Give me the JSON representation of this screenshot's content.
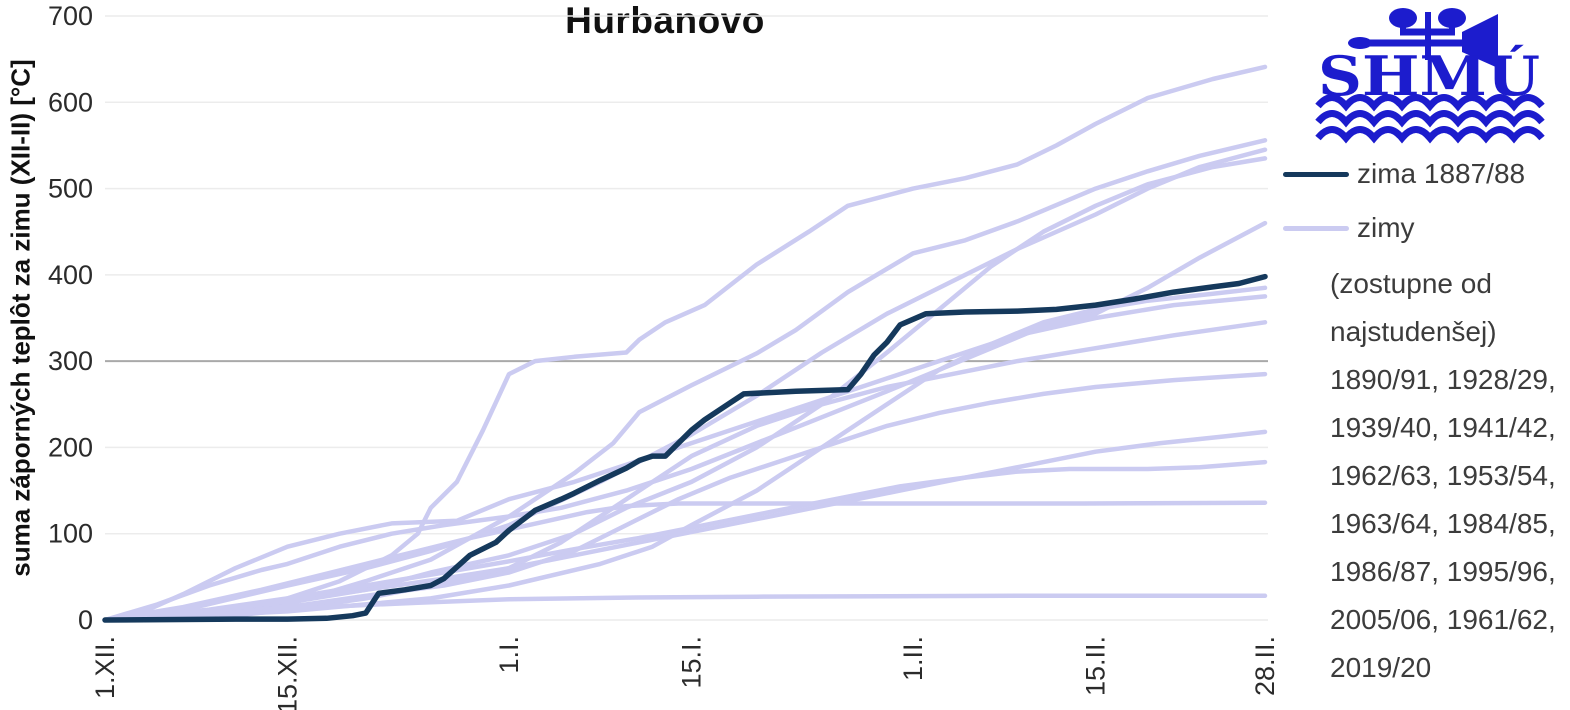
{
  "title": "Hurbanovo",
  "y_axis": {
    "label": "suma záporných teplôt za zimu (XII-II) [°C]"
  },
  "legend": {
    "item_highlight": "zima 1887/88",
    "item_other": "zimy",
    "note_lines": [
      "(zostupne od",
      "najstudenšej)",
      "1890/91, 1928/29,",
      "1939/40, 1941/42,",
      "1962/63, 1953/54,",
      "1963/64, 1984/85,",
      "1986/87, 1995/96,",
      "2005/06, 1961/62,",
      "2019/20"
    ]
  },
  "logo": {
    "text": "SHMÚ"
  },
  "colors": {
    "highlight": "#15395c",
    "other": "#cbcbf1",
    "grid": "#ececec",
    "grid_emph": "#a9a9a9",
    "logo": "#1c1ccd"
  },
  "chart_data": {
    "type": "line",
    "title": "Hurbanovo",
    "ylabel": "suma záporných teplôt za zimu (XII-II) [°C]",
    "ylim": [
      0,
      700
    ],
    "x_unit": "days since 1.XII (0) .. 28.II (89)",
    "grid": "horizontal",
    "emphasized_gridline": 300,
    "legend_position": "right",
    "y_ticks": [
      0,
      100,
      200,
      300,
      400,
      500,
      600,
      700
    ],
    "x_ticks": [
      {
        "label": "1.XII.",
        "day": 0
      },
      {
        "label": "15.XII.",
        "day": 14
      },
      {
        "label": "1.I.",
        "day": 31
      },
      {
        "label": "15.I.",
        "day": 45
      },
      {
        "label": "1.II.",
        "day": 62
      },
      {
        "label": "15.II.",
        "day": 76
      },
      {
        "label": "28.II.",
        "day": 89
      }
    ],
    "series": [
      {
        "name": "zima 1887/88",
        "role": "highlight",
        "points": [
          [
            0,
            0
          ],
          [
            10,
            1
          ],
          [
            14,
            1
          ],
          [
            17,
            2
          ],
          [
            19,
            5
          ],
          [
            20,
            8
          ],
          [
            21,
            31
          ],
          [
            23,
            35
          ],
          [
            25,
            40
          ],
          [
            26,
            48
          ],
          [
            28,
            75
          ],
          [
            30,
            90
          ],
          [
            31,
            104
          ],
          [
            33,
            127
          ],
          [
            35,
            140
          ],
          [
            36,
            147
          ],
          [
            38,
            162
          ],
          [
            40,
            176
          ],
          [
            41,
            185
          ],
          [
            42,
            190
          ],
          [
            43,
            190
          ],
          [
            45,
            220
          ],
          [
            46,
            232
          ],
          [
            48,
            252
          ],
          [
            49,
            262
          ],
          [
            53,
            265
          ],
          [
            57,
            267
          ],
          [
            58,
            285
          ],
          [
            59,
            307
          ],
          [
            60,
            322
          ],
          [
            61,
            342
          ],
          [
            63,
            355
          ],
          [
            66,
            357
          ],
          [
            70,
            358
          ],
          [
            73,
            360
          ],
          [
            76,
            365
          ],
          [
            79,
            372
          ],
          [
            82,
            380
          ],
          [
            85,
            386
          ],
          [
            87,
            390
          ],
          [
            89,
            398
          ]
        ]
      },
      {
        "name": "1890/91",
        "role": "other",
        "points": [
          [
            0,
            0
          ],
          [
            5,
            2
          ],
          [
            10,
            8
          ],
          [
            14,
            25
          ],
          [
            18,
            45
          ],
          [
            22,
            75
          ],
          [
            24,
            100
          ],
          [
            25,
            130
          ],
          [
            27,
            160
          ],
          [
            29,
            220
          ],
          [
            31,
            285
          ],
          [
            33,
            300
          ],
          [
            36,
            305
          ],
          [
            40,
            310
          ],
          [
            41,
            325
          ],
          [
            43,
            345
          ],
          [
            46,
            365
          ],
          [
            50,
            412
          ],
          [
            54,
            450
          ],
          [
            57,
            480
          ],
          [
            62,
            500
          ],
          [
            66,
            512
          ],
          [
            70,
            528
          ],
          [
            73,
            550
          ],
          [
            76,
            575
          ],
          [
            80,
            605
          ],
          [
            85,
            627
          ],
          [
            89,
            641
          ]
        ]
      },
      {
        "name": "1928/29",
        "role": "other",
        "points": [
          [
            0,
            0
          ],
          [
            8,
            8
          ],
          [
            14,
            18
          ],
          [
            20,
            45
          ],
          [
            25,
            70
          ],
          [
            28,
            95
          ],
          [
            31,
            120
          ],
          [
            36,
            170
          ],
          [
            39,
            205
          ],
          [
            41,
            241
          ],
          [
            45,
            272
          ],
          [
            50,
            309
          ],
          [
            53,
            336
          ],
          [
            57,
            380
          ],
          [
            62,
            425
          ],
          [
            66,
            440
          ],
          [
            70,
            462
          ],
          [
            76,
            500
          ],
          [
            80,
            520
          ],
          [
            84,
            538
          ],
          [
            89,
            556
          ]
        ]
      },
      {
        "name": "1939/40",
        "role": "other",
        "points": [
          [
            0,
            0
          ],
          [
            7,
            15
          ],
          [
            14,
            40
          ],
          [
            20,
            60
          ],
          [
            25,
            80
          ],
          [
            31,
            110
          ],
          [
            38,
            160
          ],
          [
            45,
            215
          ],
          [
            50,
            260
          ],
          [
            55,
            310
          ],
          [
            60,
            355
          ],
          [
            66,
            400
          ],
          [
            70,
            430
          ],
          [
            76,
            470
          ],
          [
            80,
            500
          ],
          [
            84,
            525
          ],
          [
            89,
            545
          ]
        ]
      },
      {
        "name": "1941/42",
        "role": "other",
        "points": [
          [
            0,
            0
          ],
          [
            10,
            10
          ],
          [
            14,
            20
          ],
          [
            20,
            35
          ],
          [
            25,
            55
          ],
          [
            31,
            75
          ],
          [
            36,
            100
          ],
          [
            40,
            130
          ],
          [
            45,
            160
          ],
          [
            50,
            200
          ],
          [
            55,
            250
          ],
          [
            60,
            310
          ],
          [
            64,
            360
          ],
          [
            68,
            410
          ],
          [
            72,
            450
          ],
          [
            76,
            480
          ],
          [
            80,
            505
          ],
          [
            85,
            525
          ],
          [
            89,
            535
          ]
        ]
      },
      {
        "name": "1962/63",
        "role": "other",
        "points": [
          [
            0,
            0
          ],
          [
            4,
            18
          ],
          [
            8,
            40
          ],
          [
            12,
            58
          ],
          [
            14,
            65
          ],
          [
            18,
            85
          ],
          [
            22,
            100
          ],
          [
            26,
            110
          ],
          [
            31,
            120
          ],
          [
            35,
            130
          ],
          [
            40,
            150
          ],
          [
            45,
            175
          ],
          [
            50,
            205
          ],
          [
            55,
            235
          ],
          [
            60,
            265
          ],
          [
            64,
            290
          ],
          [
            68,
            315
          ],
          [
            72,
            340
          ],
          [
            76,
            355
          ],
          [
            80,
            385
          ],
          [
            84,
            420
          ],
          [
            89,
            460
          ]
        ]
      },
      {
        "name": "1953/54",
        "role": "other",
        "points": [
          [
            0,
            0
          ],
          [
            14,
            10
          ],
          [
            25,
            25
          ],
          [
            31,
            40
          ],
          [
            38,
            65
          ],
          [
            42,
            85
          ],
          [
            45,
            110
          ],
          [
            50,
            150
          ],
          [
            55,
            200
          ],
          [
            60,
            250
          ],
          [
            64,
            290
          ],
          [
            68,
            320
          ],
          [
            72,
            345
          ],
          [
            76,
            360
          ],
          [
            80,
            370
          ],
          [
            85,
            378
          ],
          [
            89,
            385
          ]
        ]
      },
      {
        "name": "1963/64",
        "role": "other",
        "points": [
          [
            0,
            0
          ],
          [
            3,
            10
          ],
          [
            6,
            30
          ],
          [
            10,
            60
          ],
          [
            14,
            85
          ],
          [
            18,
            100
          ],
          [
            22,
            112
          ],
          [
            27,
            115
          ],
          [
            31,
            140
          ],
          [
            36,
            160
          ],
          [
            40,
            180
          ],
          [
            45,
            205
          ],
          [
            50,
            230
          ],
          [
            55,
            255
          ],
          [
            60,
            280
          ],
          [
            65,
            305
          ],
          [
            70,
            330
          ],
          [
            76,
            350
          ],
          [
            82,
            365
          ],
          [
            89,
            375
          ]
        ]
      },
      {
        "name": "1984/85",
        "role": "other",
        "points": [
          [
            0,
            0
          ],
          [
            10,
            5
          ],
          [
            14,
            12
          ],
          [
            20,
            25
          ],
          [
            25,
            40
          ],
          [
            31,
            60
          ],
          [
            35,
            90
          ],
          [
            40,
            140
          ],
          [
            45,
            190
          ],
          [
            50,
            225
          ],
          [
            55,
            250
          ],
          [
            60,
            270
          ],
          [
            65,
            285
          ],
          [
            70,
            300
          ],
          [
            76,
            315
          ],
          [
            82,
            330
          ],
          [
            89,
            345
          ]
        ]
      },
      {
        "name": "1986/87",
        "role": "other",
        "points": [
          [
            0,
            0
          ],
          [
            10,
            8
          ],
          [
            14,
            15
          ],
          [
            20,
            28
          ],
          [
            26,
            40
          ],
          [
            31,
            55
          ],
          [
            36,
            80
          ],
          [
            40,
            110
          ],
          [
            44,
            140
          ],
          [
            48,
            165
          ],
          [
            52,
            185
          ],
          [
            56,
            205
          ],
          [
            60,
            225
          ],
          [
            64,
            240
          ],
          [
            68,
            252
          ],
          [
            72,
            262
          ],
          [
            76,
            270
          ],
          [
            82,
            278
          ],
          [
            89,
            285
          ]
        ]
      },
      {
        "name": "1995/96",
        "role": "other",
        "points": [
          [
            0,
            0
          ],
          [
            8,
            10
          ],
          [
            14,
            22
          ],
          [
            20,
            35
          ],
          [
            26,
            48
          ],
          [
            31,
            60
          ],
          [
            36,
            75
          ],
          [
            41,
            90
          ],
          [
            46,
            105
          ],
          [
            51,
            120
          ],
          [
            56,
            135
          ],
          [
            61,
            150
          ],
          [
            66,
            165
          ],
          [
            71,
            180
          ],
          [
            76,
            195
          ],
          [
            81,
            205
          ],
          [
            86,
            213
          ],
          [
            89,
            218
          ]
        ]
      },
      {
        "name": "2005/06",
        "role": "other",
        "points": [
          [
            0,
            0
          ],
          [
            8,
            12
          ],
          [
            14,
            25
          ],
          [
            20,
            40
          ],
          [
            26,
            55
          ],
          [
            31,
            68
          ],
          [
            36,
            82
          ],
          [
            41,
            95
          ],
          [
            46,
            110
          ],
          [
            51,
            125
          ],
          [
            56,
            140
          ],
          [
            61,
            155
          ],
          [
            66,
            165
          ],
          [
            70,
            172
          ],
          [
            74,
            175
          ],
          [
            80,
            175
          ],
          [
            84,
            177
          ],
          [
            89,
            183
          ]
        ]
      },
      {
        "name": "1961/62",
        "role": "other",
        "points": [
          [
            0,
            0
          ],
          [
            6,
            15
          ],
          [
            12,
            35
          ],
          [
            16,
            50
          ],
          [
            20,
            65
          ],
          [
            24,
            80
          ],
          [
            28,
            95
          ],
          [
            31,
            105
          ],
          [
            34,
            115
          ],
          [
            37,
            125
          ],
          [
            40,
            132
          ],
          [
            44,
            135
          ],
          [
            60,
            135
          ],
          [
            75,
            135
          ],
          [
            89,
            136
          ]
        ]
      },
      {
        "name": "2019/20",
        "role": "other",
        "points": [
          [
            0,
            0
          ],
          [
            5,
            3
          ],
          [
            10,
            8
          ],
          [
            14,
            12
          ],
          [
            18,
            16
          ],
          [
            24,
            20
          ],
          [
            31,
            24
          ],
          [
            40,
            26
          ],
          [
            50,
            27
          ],
          [
            70,
            28
          ],
          [
            89,
            28
          ]
        ]
      }
    ]
  }
}
